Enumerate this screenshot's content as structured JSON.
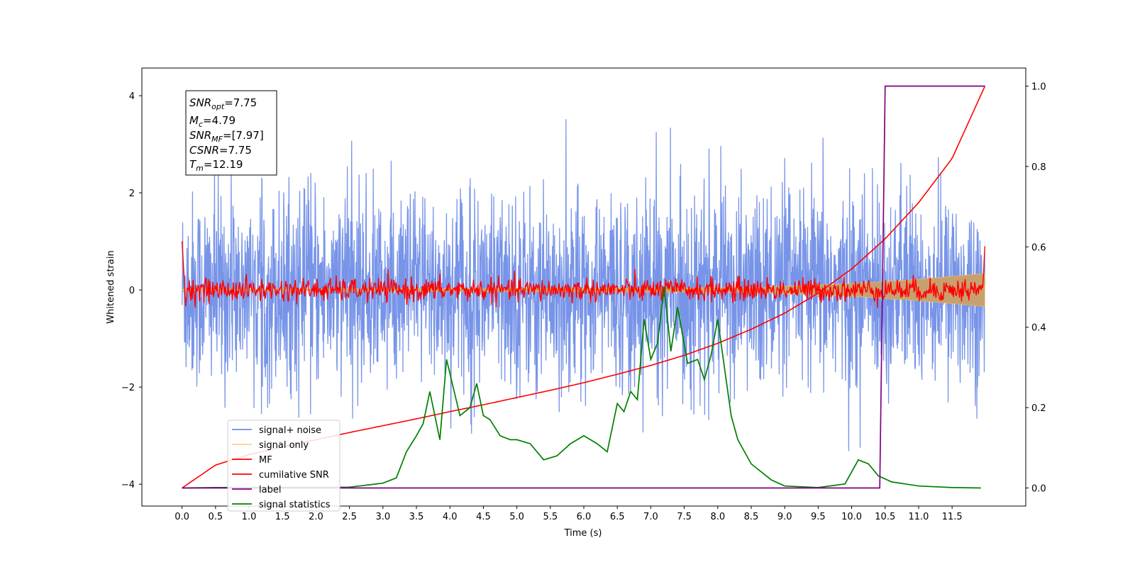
{
  "chart_data": {
    "type": "line",
    "xlabel": "Time (s)",
    "ylabel": "Whitened strain",
    "xlim": [
      -0.6,
      12.6
    ],
    "ylim_left": [
      -4.45,
      4.57
    ],
    "ylim_right": [
      -0.045,
      1.045
    ],
    "xticks": [
      "0.0",
      "0.5",
      "1.0",
      "1.5",
      "2.0",
      "2.5",
      "3.0",
      "3.5",
      "4.0",
      "4.5",
      "5.0",
      "5.5",
      "6.0",
      "6.5",
      "7.0",
      "7.5",
      "8.0",
      "8.5",
      "9.0",
      "9.5",
      "10.0",
      "10.5",
      "11.0",
      "11.5"
    ],
    "yticks_left": [
      "4",
      "2",
      "0",
      "−2",
      "−4"
    ],
    "yticks_left_values": [
      4,
      2,
      0,
      -2,
      -4
    ],
    "yticks_right": [
      "1.0",
      "0.8",
      "0.6",
      "0.4",
      "0.2",
      "0.0"
    ],
    "yticks_right_values": [
      1.0,
      0.8,
      0.6,
      0.4,
      0.2,
      0.0
    ],
    "grid": false,
    "legend_position": "lower-left",
    "colors": {
      "signal_noise": "#6b8be6",
      "signal_only": "#ffc04d",
      "mf": "#ff0000",
      "cumulative_snr": "#ff0000",
      "label": "#800080",
      "signal_statistics": "#008000",
      "signal_fill": "#c8a070"
    },
    "series": [
      {
        "name": "signal+ noise",
        "axis": "left",
        "noise_std": 1.0,
        "x_range": [
          0.0,
          11.99
        ]
      },
      {
        "name": "signal only",
        "axis": "left",
        "envelope_x": [
          0,
          8.5,
          10.0,
          11.0,
          11.99
        ],
        "envelope_amp": [
          0.01,
          0.05,
          0.13,
          0.22,
          0.34
        ]
      },
      {
        "name": "MF",
        "axis": "left",
        "start_value": 1.0,
        "noise_std": 0.12,
        "x_range": [
          0.0,
          11.99
        ],
        "end_value": 0.9
      },
      {
        "name": "cumilative SNR",
        "axis": "right",
        "x": [
          0.0,
          0.5,
          1.0,
          1.5,
          2.0,
          2.5,
          3.0,
          3.5,
          4.0,
          4.5,
          5.0,
          5.5,
          6.0,
          6.5,
          7.0,
          7.5,
          8.0,
          8.5,
          9.0,
          9.5,
          10.0,
          10.5,
          11.0,
          11.5,
          11.99
        ],
        "y": [
          0.0,
          0.057,
          0.083,
          0.102,
          0.12,
          0.138,
          0.155,
          0.172,
          0.19,
          0.207,
          0.225,
          0.243,
          0.262,
          0.283,
          0.305,
          0.33,
          0.36,
          0.395,
          0.435,
          0.485,
          0.545,
          0.62,
          0.71,
          0.82,
          1.0
        ]
      },
      {
        "name": "label",
        "axis": "right",
        "x": [
          0.0,
          10.42,
          10.5,
          11.99
        ],
        "y": [
          0.0,
          0.0,
          1.0,
          1.0
        ]
      },
      {
        "name": "signal statistics",
        "axis": "right",
        "x": [
          0.0,
          0.5,
          1.0,
          1.5,
          2.0,
          2.5,
          2.8,
          3.0,
          3.2,
          3.35,
          3.5,
          3.6,
          3.7,
          3.85,
          3.95,
          4.05,
          4.15,
          4.3,
          4.4,
          4.5,
          4.6,
          4.75,
          4.9,
          5.0,
          5.2,
          5.4,
          5.6,
          5.8,
          6.0,
          6.2,
          6.35,
          6.5,
          6.6,
          6.7,
          6.8,
          6.9,
          7.0,
          7.1,
          7.2,
          7.3,
          7.4,
          7.55,
          7.7,
          7.8,
          7.9,
          8.0,
          8.1,
          8.2,
          8.3,
          8.5,
          8.8,
          9.0,
          9.5,
          9.9,
          10.1,
          10.25,
          10.4,
          10.6,
          10.8,
          11.0,
          11.5,
          11.93
        ],
        "y": [
          0.0,
          0.001,
          0.001,
          0.001,
          0.001,
          0.002,
          0.008,
          0.012,
          0.025,
          0.09,
          0.13,
          0.16,
          0.24,
          0.12,
          0.32,
          0.25,
          0.18,
          0.2,
          0.26,
          0.18,
          0.17,
          0.13,
          0.12,
          0.12,
          0.11,
          0.07,
          0.08,
          0.11,
          0.13,
          0.11,
          0.09,
          0.21,
          0.19,
          0.24,
          0.22,
          0.42,
          0.32,
          0.36,
          0.5,
          0.34,
          0.45,
          0.31,
          0.32,
          0.27,
          0.33,
          0.42,
          0.3,
          0.18,
          0.12,
          0.06,
          0.02,
          0.005,
          0.001,
          0.01,
          0.07,
          0.06,
          0.03,
          0.015,
          0.01,
          0.005,
          0.001,
          0.0
        ]
      }
    ],
    "annotation": {
      "lines": [
        {
          "sym": "SNR",
          "sub": "opt",
          "value": "=7.75"
        },
        {
          "sym": "M",
          "sub": "c",
          "value": "=4.79"
        },
        {
          "sym": "SNR",
          "sub": "MF",
          "value": "=[7.97]"
        },
        {
          "sym": "CSNR",
          "sub": "",
          "value": "=7.75"
        },
        {
          "sym": "T",
          "sub": "m",
          "value": "=12.19"
        }
      ]
    }
  }
}
